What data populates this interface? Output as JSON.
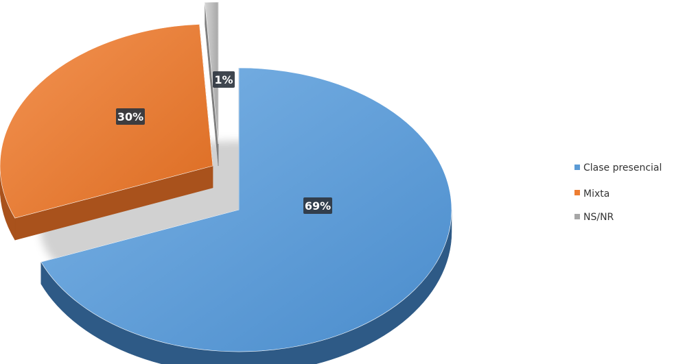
{
  "chart_data": {
    "type": "pie",
    "style": "3d-exploded",
    "legend_position": "right",
    "slices": [
      {
        "label": "Clase presencial",
        "value": 69,
        "value_label": "69%",
        "color": "#5b9bd5",
        "side_color": "#2e5a86"
      },
      {
        "label": "Mixta",
        "value": 30,
        "value_label": "30%",
        "color": "#ed7d31",
        "side_color": "#a9521c"
      },
      {
        "label": "NS/NR",
        "value": 1,
        "value_label": "1%",
        "color": "#bfbfbf",
        "side_color": "#7f7f7f"
      }
    ]
  }
}
